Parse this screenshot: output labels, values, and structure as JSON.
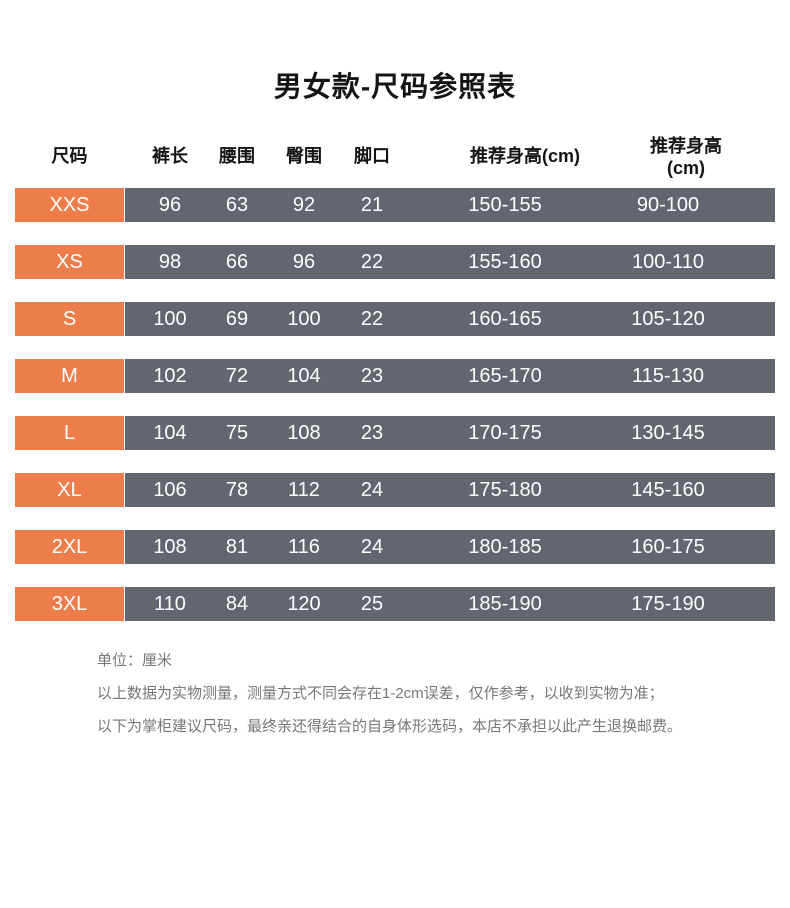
{
  "page": {
    "title": "男女款-尺码参照表"
  },
  "table": {
    "columns": [
      "尺码",
      "裤长",
      "腰围",
      "臀围",
      "脚口",
      "推荐身高(cm)",
      "推荐身高(cm)"
    ],
    "rows": [
      {
        "size": "XXS",
        "values": [
          "96",
          "63",
          "92",
          "21",
          "150-155",
          "90-100"
        ]
      },
      {
        "size": "XS",
        "values": [
          "98",
          "66",
          "96",
          "22",
          "155-160",
          "100-110"
        ]
      },
      {
        "size": "S",
        "values": [
          "100",
          "69",
          "100",
          "22",
          "160-165",
          "105-120"
        ]
      },
      {
        "size": "M",
        "values": [
          "102",
          "72",
          "104",
          "23",
          "165-170",
          "115-130"
        ]
      },
      {
        "size": "L",
        "values": [
          "104",
          "75",
          "108",
          "23",
          "170-175",
          "130-145"
        ]
      },
      {
        "size": "XL",
        "values": [
          "106",
          "78",
          "112",
          "24",
          "175-180",
          "145-160"
        ]
      },
      {
        "size": "2XL",
        "values": [
          "108",
          "81",
          "116",
          "24",
          "180-185",
          "160-175"
        ]
      },
      {
        "size": "3XL",
        "values": [
          "110",
          "84",
          "120",
          "25",
          "185-190",
          "175-190"
        ]
      }
    ]
  },
  "notes": [
    "单位：厘米",
    "以上数据为实物测量，测量方式不同会存在1-2cm误差，仅作参考，以收到实物为准；",
    "以下为掌柜建议尺码，最终亲还得结合的自身体形选码，本店不承担以此产生退换邮费。"
  ],
  "colors": {
    "accent_orange": "#ED7D4B",
    "row_gray": "#62666E",
    "note_text": "#777777"
  }
}
